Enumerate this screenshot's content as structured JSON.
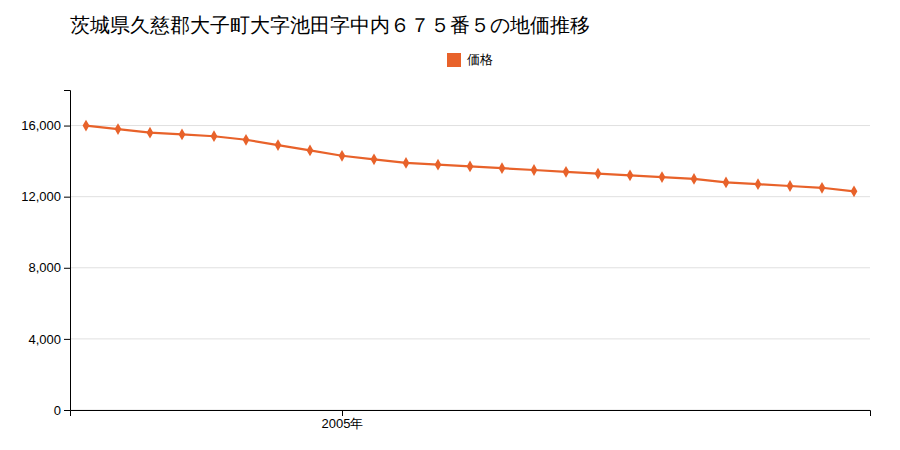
{
  "chart_data": {
    "type": "line",
    "title": "茨城県久慈郡大子町大字池田字中内６７５番５の地価推移",
    "x": [
      1997,
      1998,
      1999,
      2000,
      2001,
      2002,
      2003,
      2004,
      2005,
      2006,
      2007,
      2008,
      2009,
      2010,
      2011,
      2012,
      2013,
      2014,
      2015,
      2016,
      2017,
      2018,
      2019,
      2020,
      2021
    ],
    "series": [
      {
        "name": "価格",
        "color": "#e8622a",
        "marker": "diamond",
        "values": [
          16000,
          15800,
          15600,
          15500,
          15400,
          15200,
          14900,
          14600,
          14300,
          14100,
          13900,
          13800,
          13700,
          13600,
          13500,
          13400,
          13300,
          13200,
          13100,
          13000,
          12800,
          12700,
          12600,
          12500,
          12300
        ]
      }
    ],
    "xlim": [
      1996.5,
      2021.5
    ],
    "xticks": [
      {
        "value": 2005,
        "label": "2005年"
      }
    ],
    "ylim": [
      0,
      18000
    ],
    "yticks": [
      0,
      {
        "value": 4000,
        "label": "4,000"
      },
      {
        "value": 8000,
        "label": "8,000"
      },
      {
        "value": 12000,
        "label": "12,000"
      },
      {
        "value": 16000,
        "label": "16,000"
      }
    ],
    "grid": true,
    "legend": "top"
  }
}
